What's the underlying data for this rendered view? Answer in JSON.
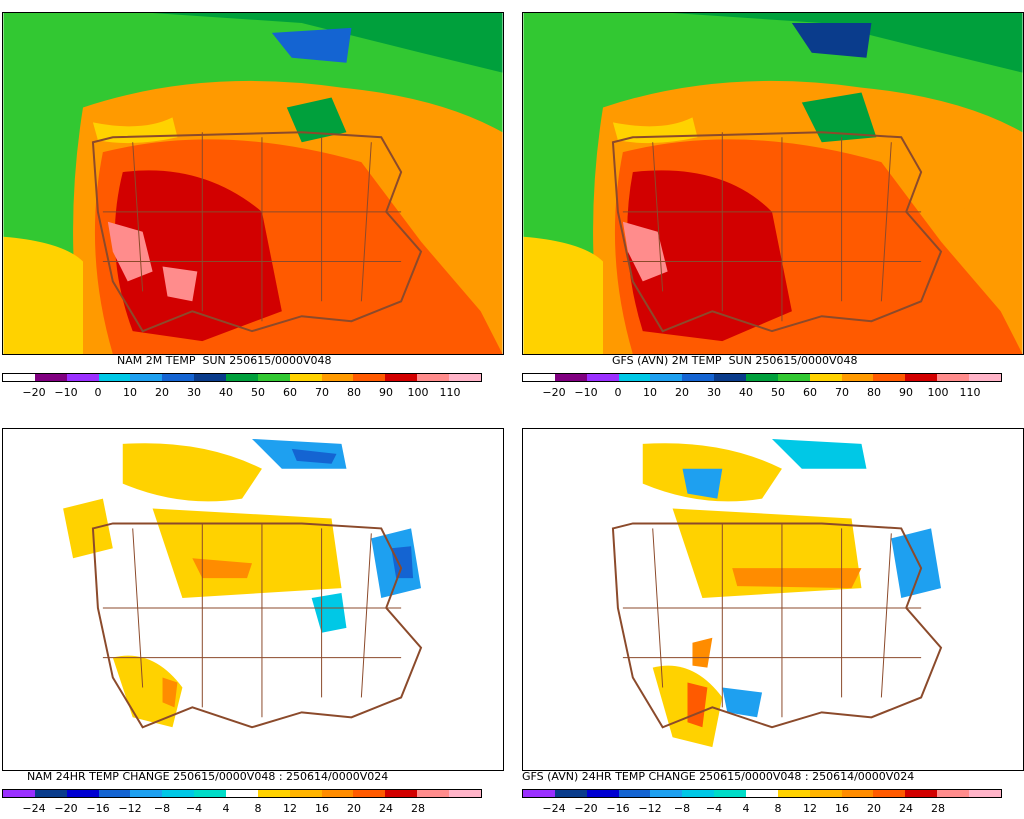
{
  "panels": [
    {
      "id": "nam-temp",
      "title": "NAM 2M TEMP  SUN 250615/0000V048",
      "scale": [
        "−20",
        "−10",
        "0",
        "10",
        "20",
        "30",
        "40",
        "50",
        "60",
        "70",
        "80",
        "90",
        "100",
        "110"
      ],
      "colors": [
        "#ffffff",
        "#800080",
        "#9b30ff",
        "#00c8e6",
        "#1ea0f0",
        "#1464d2",
        "#0a3c8c",
        "#00a03c",
        "#32c832",
        "#ffd200",
        "#ff9a00",
        "#ff5a00",
        "#d20000",
        "#ff8c8c",
        "#ffb4c8"
      ]
    },
    {
      "id": "gfs-temp",
      "title": "GFS (AVN) 2M TEMP  SUN 250615/0000V048",
      "scale": [
        "−20",
        "−10",
        "0",
        "10",
        "20",
        "30",
        "40",
        "50",
        "60",
        "70",
        "80",
        "90",
        "100",
        "110"
      ],
      "colors": [
        "#ffffff",
        "#800080",
        "#9b30ff",
        "#00c8e6",
        "#1ea0f0",
        "#1464d2",
        "#0a3c8c",
        "#00a03c",
        "#32c832",
        "#ffd200",
        "#ff9a00",
        "#ff5a00",
        "#d20000",
        "#ff8c8c",
        "#ffb4c8"
      ]
    },
    {
      "id": "nam-change",
      "title": "NAM 24HR TEMP CHANGE 250615/0000V048 : 250614/0000V024",
      "scale": [
        "−24",
        "−20",
        "−16",
        "−12",
        "−8",
        "−4",
        "4",
        "8",
        "12",
        "16",
        "20",
        "24",
        "28"
      ],
      "colors": [
        "#9b30ff",
        "#0a3c8c",
        "#0000d2",
        "#1464d2",
        "#1ea0f0",
        "#00c8e6",
        "#00dcc8",
        "#ffffff",
        "#ffd200",
        "#ffb400",
        "#ff8c00",
        "#ff5a00",
        "#d20000",
        "#ff8c8c",
        "#ffb4c8"
      ]
    },
    {
      "id": "gfs-change",
      "title": "GFS (AVN) 24HR TEMP CHANGE 250615/0000V048 : 250614/0000V024",
      "scale": [
        "−24",
        "−20",
        "−16",
        "−12",
        "−8",
        "−4",
        "4",
        "8",
        "12",
        "16",
        "20",
        "24",
        "28"
      ],
      "colors": [
        "#9b30ff",
        "#0a3c8c",
        "#0000d2",
        "#1464d2",
        "#1ea0f0",
        "#00c8e6",
        "#00dcc8",
        "#ffffff",
        "#ffd200",
        "#ffb400",
        "#ff8c00",
        "#ff5a00",
        "#d20000",
        "#ff8c8c",
        "#ffb4c8"
      ]
    }
  ],
  "map_colors": {
    "border_line": "#8b4a2b",
    "cold_green": "#00a03c",
    "green": "#32c832",
    "yellow": "#ffd200",
    "orange": "#ff9a00",
    "red_orange": "#ff5a00",
    "red": "#d20000",
    "pink": "#ff8c8c",
    "blue": "#1464d2",
    "cyan": "#00c8e6"
  }
}
